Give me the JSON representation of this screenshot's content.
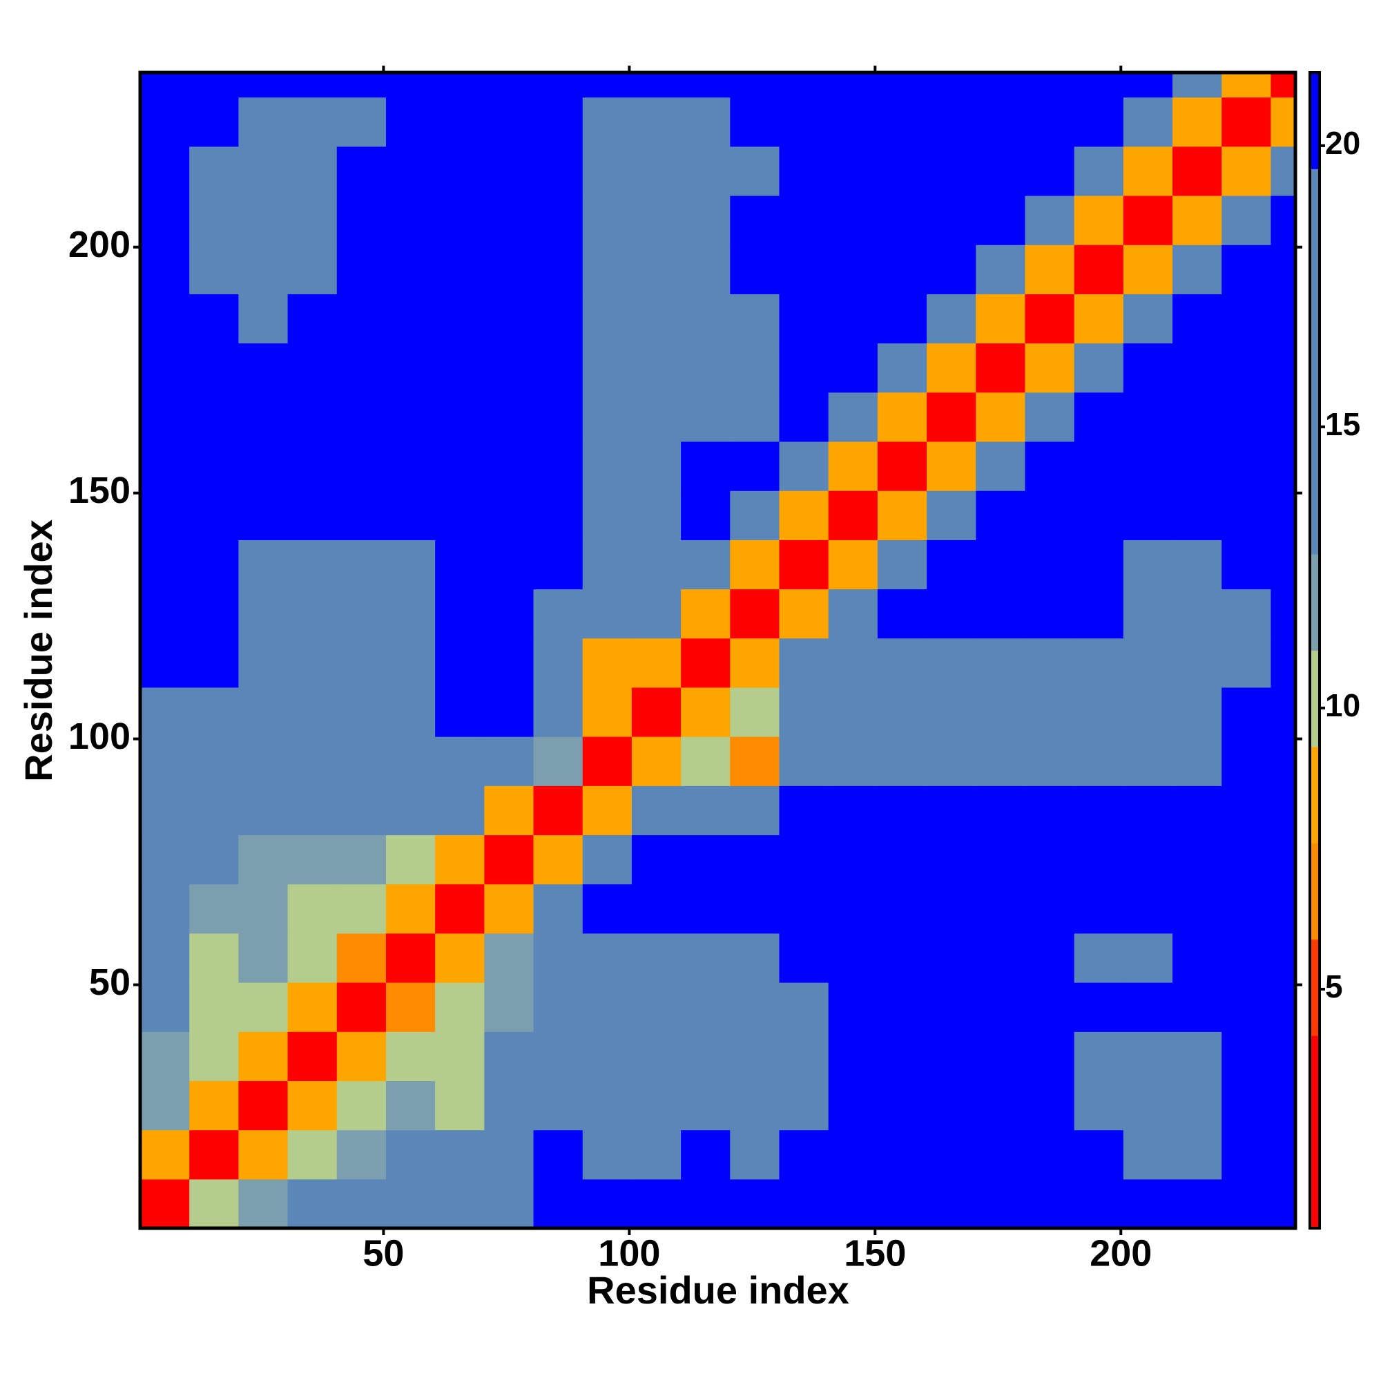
{
  "chart_data": {
    "type": "heatmap",
    "x_label": "Residue index",
    "y_label": "Residue index",
    "x_bins": [
      0.5,
      10.5,
      20.5,
      30.5,
      40.5,
      50.5,
      60.5,
      70.5,
      80.5,
      90.5,
      100.5,
      110.5,
      120.5,
      130.5,
      140.5,
      150.5,
      160.5,
      170.5,
      180.5,
      190.5,
      200.5,
      210.5,
      220.5,
      230.5,
      235.5
    ],
    "y_bins": [
      0.5,
      10.5,
      20.5,
      30.5,
      40.5,
      50.5,
      60.5,
      70.5,
      80.5,
      90.5,
      100.5,
      110.5,
      120.5,
      130.5,
      140.5,
      150.5,
      160.5,
      170.5,
      180.5,
      190.5,
      200.5,
      210.5,
      220.5,
      230.5,
      235.5
    ],
    "xlim": [
      0.5,
      235.5
    ],
    "ylim": [
      0.5,
      235.5
    ],
    "xticks": [
      50,
      100,
      150,
      200
    ],
    "yticks": [
      50,
      100,
      150,
      200
    ],
    "colorbar_lim": [
      0.75,
      21.3
    ],
    "colorbar_ticks": [
      5,
      10,
      15,
      20
    ],
    "colors": [
      "#ff0000",
      "#ff0000",
      "#ff3a00",
      "#ff8c00",
      "#ffa500",
      "#b4cc8c",
      "#7c9fb0",
      "#5b87b8",
      "#5b87b8",
      "#5b87b8",
      "#5b87b8",
      "#0000ff"
    ],
    "z": [
      [
        3,
        10,
        12,
        13,
        13,
        14,
        15,
        15,
        21,
        21,
        20,
        21,
        21,
        21,
        21,
        21,
        21,
        21,
        21,
        21,
        21,
        21,
        21,
        21
      ],
      [
        9,
        3,
        9,
        11,
        12,
        13,
        13,
        14,
        20,
        19,
        19,
        21,
        19,
        21,
        21,
        21,
        21,
        21,
        21,
        21,
        19,
        19,
        21,
        21
      ],
      [
        12,
        9,
        3,
        9,
        11,
        12,
        11,
        13,
        17,
        19,
        19,
        19,
        18,
        19,
        21,
        21,
        21,
        21,
        21,
        19,
        18,
        18,
        21,
        21
      ],
      [
        12,
        11,
        9,
        3,
        9,
        11,
        11,
        13,
        16,
        19,
        19,
        19,
        18,
        19,
        21,
        21,
        21,
        21,
        21,
        19,
        19,
        19,
        21,
        21
      ],
      [
        13,
        11,
        11,
        9,
        3,
        7,
        11,
        12,
        14,
        19,
        19,
        19,
        18,
        19,
        21,
        21,
        21,
        21,
        21,
        21,
        21,
        21,
        21,
        21
      ],
      [
        13,
        11,
        12,
        11,
        7,
        3,
        9,
        12,
        15,
        19,
        19,
        19,
        18,
        21,
        21,
        21,
        21,
        21,
        21,
        18,
        18,
        21,
        21,
        21
      ],
      [
        14,
        12,
        12,
        11,
        11,
        9,
        3,
        9,
        14,
        20,
        21,
        21,
        20,
        21,
        21,
        21,
        21,
        21,
        21,
        21,
        21,
        21,
        21,
        21
      ],
      [
        14,
        13,
        12,
        12,
        12,
        11,
        9,
        3,
        9,
        14,
        21,
        21,
        21,
        21,
        21,
        21,
        21,
        21,
        21,
        21,
        21,
        21,
        21,
        21
      ],
      [
        18,
        17,
        17,
        16,
        15,
        15,
        14,
        9,
        3,
        9,
        14,
        15,
        16,
        21,
        21,
        21,
        21,
        21,
        21,
        21,
        21,
        21,
        21,
        21
      ],
      [
        19,
        19,
        19,
        18,
        18,
        19,
        19,
        19,
        12,
        3,
        9,
        11,
        7,
        16,
        18,
        19,
        19,
        18,
        17,
        17,
        17,
        18,
        21,
        21
      ],
      [
        19,
        19,
        18,
        18,
        18,
        19,
        20,
        21,
        14,
        9,
        3,
        9,
        11,
        14,
        17,
        18,
        18,
        18,
        18,
        18,
        18,
        18,
        21,
        21
      ],
      [
        21,
        21,
        19,
        19,
        19,
        19,
        21,
        21,
        16,
        8,
        9,
        3,
        9,
        13,
        18,
        19,
        19,
        19,
        19,
        19,
        19,
        18,
        19,
        21
      ],
      [
        21,
        21,
        19,
        19,
        19,
        19,
        20,
        21,
        17,
        14,
        13,
        9,
        3,
        9,
        14,
        21,
        21,
        21,
        21,
        21,
        19,
        19,
        19,
        21
      ],
      [
        21,
        21,
        19,
        19,
        19,
        19,
        20,
        21,
        21,
        17,
        17,
        14,
        9,
        3,
        9,
        14,
        21,
        21,
        21,
        21,
        19,
        19,
        21,
        21
      ],
      [
        21,
        21,
        20,
        20,
        20,
        21,
        21,
        21,
        21,
        17,
        18,
        21,
        14,
        9,
        3,
        9,
        14,
        21,
        21,
        21,
        21,
        21,
        21,
        21
      ],
      [
        21,
        21,
        21,
        21,
        21,
        21,
        21,
        21,
        21,
        17,
        19,
        21,
        21,
        14,
        9,
        3,
        9,
        14,
        21,
        21,
        21,
        21,
        21,
        21
      ],
      [
        21,
        21,
        21,
        21,
        21,
        21,
        21,
        21,
        21,
        17,
        18,
        19,
        19,
        21,
        14,
        9,
        3,
        9,
        14,
        21,
        21,
        21,
        21,
        21
      ],
      [
        21,
        21,
        21,
        21,
        21,
        21,
        21,
        21,
        21,
        17,
        17,
        18,
        19,
        21,
        21,
        14,
        9,
        3,
        9,
        14,
        21,
        21,
        21,
        21
      ],
      [
        21,
        21,
        19,
        21,
        21,
        21,
        21,
        21,
        21,
        17,
        17,
        18,
        19,
        21,
        21,
        21,
        14,
        9,
        3,
        9,
        14,
        21,
        21,
        21
      ],
      [
        21,
        19,
        18,
        19,
        21,
        21,
        21,
        21,
        21,
        18,
        18,
        19,
        21,
        21,
        21,
        21,
        21,
        14,
        9,
        3,
        9,
        14,
        21,
        21
      ],
      [
        21,
        19,
        18,
        19,
        21,
        21,
        21,
        21,
        21,
        18,
        19,
        19,
        21,
        21,
        21,
        21,
        21,
        21,
        14,
        9,
        3,
        9,
        14,
        21
      ],
      [
        20,
        19,
        18,
        19,
        20,
        21,
        21,
        21,
        21,
        18,
        18,
        19,
        19,
        21,
        21,
        21,
        21,
        21,
        21,
        14,
        9,
        3,
        9,
        14
      ],
      [
        21,
        21,
        19,
        19,
        19,
        21,
        21,
        21,
        21,
        19,
        18,
        19,
        21,
        21,
        21,
        21,
        21,
        21,
        21,
        21,
        14,
        9,
        3,
        9
      ],
      [
        21,
        21,
        21,
        21,
        21,
        21,
        21,
        21,
        21,
        21,
        21,
        21,
        21,
        21,
        21,
        21,
        21,
        21,
        21,
        21,
        21,
        14,
        9,
        3
      ]
    ]
  }
}
